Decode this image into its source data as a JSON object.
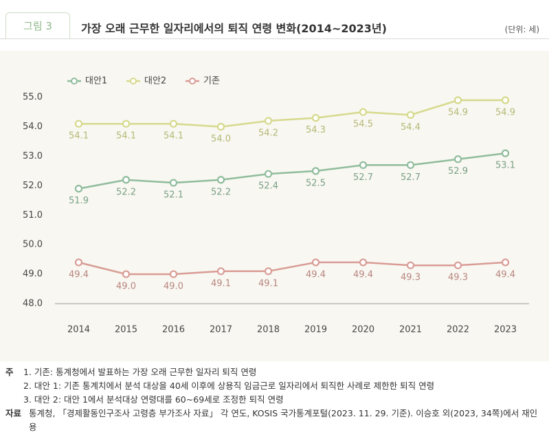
{
  "figure_label": "그림 3",
  "unit": "(단위: 세)",
  "chart_data": {
    "type": "line",
    "title": "가장 오래 근무한 일자리에서의 퇴직 연령 변화(2014~2023년)",
    "categories": [
      "2014",
      "2015",
      "2016",
      "2017",
      "2018",
      "2019",
      "2020",
      "2021",
      "2022",
      "2023"
    ],
    "series": [
      {
        "name": "대안1",
        "color": "#8fbc9c",
        "values": [
          51.9,
          52.2,
          52.1,
          52.2,
          52.4,
          52.5,
          52.7,
          52.7,
          52.9,
          53.1
        ],
        "value_labels": [
          "51.9",
          "52.2",
          "52.1",
          "52.2",
          "52.4",
          "52.5",
          "52.7",
          "52.7",
          "52.9",
          "53.1"
        ]
      },
      {
        "name": "대안2",
        "color": "#d6d98c",
        "values": [
          54.1,
          54.1,
          54.1,
          54.0,
          54.2,
          54.3,
          54.5,
          54.4,
          54.9,
          54.9
        ],
        "value_labels": [
          "54.1",
          "54.1",
          "54.1",
          "54.0",
          "54.2",
          "54.3",
          "54.5",
          "54.4",
          "54.9",
          "54.9"
        ]
      },
      {
        "name": "기존",
        "color": "#d99b95",
        "values": [
          49.4,
          49.0,
          49.0,
          49.1,
          49.1,
          49.4,
          49.4,
          49.3,
          49.3,
          49.4
        ],
        "value_labels": [
          "49.4",
          "49.0",
          "49.0",
          "49.1",
          "49.1",
          "49.4",
          "49.4",
          "49.3",
          "49.3",
          "49.4"
        ]
      }
    ],
    "ylim": [
      48,
      55.2
    ],
    "yticks": [
      {
        "value": 48,
        "label": "48.0"
      },
      {
        "value": 49,
        "label": "49.0"
      },
      {
        "value": 50,
        "label": "50.0"
      },
      {
        "value": 51,
        "label": "51.0"
      },
      {
        "value": 52,
        "label": "52.0"
      },
      {
        "value": 53,
        "label": "53.0"
      },
      {
        "value": 54,
        "label": "54.0"
      },
      {
        "value": 55,
        "label": "55.0"
      }
    ],
    "grid": false,
    "legend": "top-left"
  },
  "notes": {
    "label": "주",
    "items": [
      "1. 기존: 통계청에서 발표하는 가장 오래 근무한 일자리 퇴직 연령",
      "2. 대안 1: 기존 통계치에서 분석 대상을 40세 이후에 상용직 임금근로 일자리에서 퇴직한 사례로 제한한 퇴직 연령",
      "3. 대안 2: 대안 1에서 분석대상 연령대를 60~69세로 조정한 퇴직 연령"
    ]
  },
  "source": {
    "label": "자료",
    "text": "통계청, 「경제활동인구조사 고령층 부가조사 자료」 각 연도, KOSIS 국가통계포털(2023. 11. 29. 기준). 이승호 외(2023, 34쪽)에서 재인용"
  }
}
